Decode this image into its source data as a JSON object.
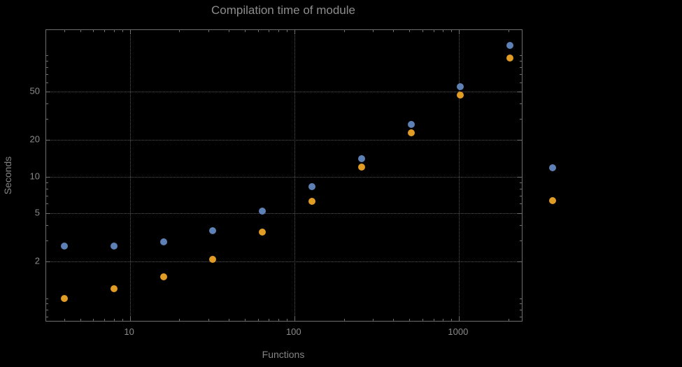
{
  "chart_data": {
    "type": "scatter",
    "title": "Compilation time of module",
    "xlabel": "Functions",
    "ylabel": "Seconds",
    "x_scale": "log",
    "y_scale": "log",
    "x": [
      4,
      8,
      16,
      32,
      64,
      128,
      256,
      512,
      1024,
      2048
    ],
    "series": [
      {
        "name": "series-1-blue",
        "color": "#5e81b5",
        "values": [
          2.7,
          2.7,
          2.9,
          3.6,
          5.2,
          8.3,
          14,
          27,
          55,
          120
        ]
      },
      {
        "name": "series-2-orange",
        "color": "#e19c24",
        "values": [
          1.0,
          1.2,
          1.5,
          2.1,
          3.5,
          6.3,
          12,
          23,
          47,
          95
        ]
      }
    ],
    "axes": {
      "x_ticks": [
        10,
        100,
        1000
      ],
      "y_ticks": [
        2,
        5,
        10,
        20,
        50
      ],
      "xlim": [
        3.1,
        2416
      ],
      "ylim": [
        0.65,
        161
      ],
      "grid": "dotted gridlines at labeled ticks"
    },
    "legend": {
      "note": "two unlabeled point markers to the right of the plot frame",
      "markers": [
        {
          "name": "legend-marker-blue",
          "color": "#5e81b5",
          "x": 790,
          "y": 240
        },
        {
          "name": "legend-marker-orange",
          "color": "#e19c24",
          "x": 790,
          "y": 287
        }
      ]
    }
  },
  "colors": {
    "background": "#000000",
    "frame": "#6e6e6e",
    "grid": "#565656",
    "title_text": "#8d8d8d",
    "label_text": "#848484",
    "tick_text": "#8a8a8a",
    "series_blue": "#5e81b5",
    "series_orange": "#e19c24"
  }
}
